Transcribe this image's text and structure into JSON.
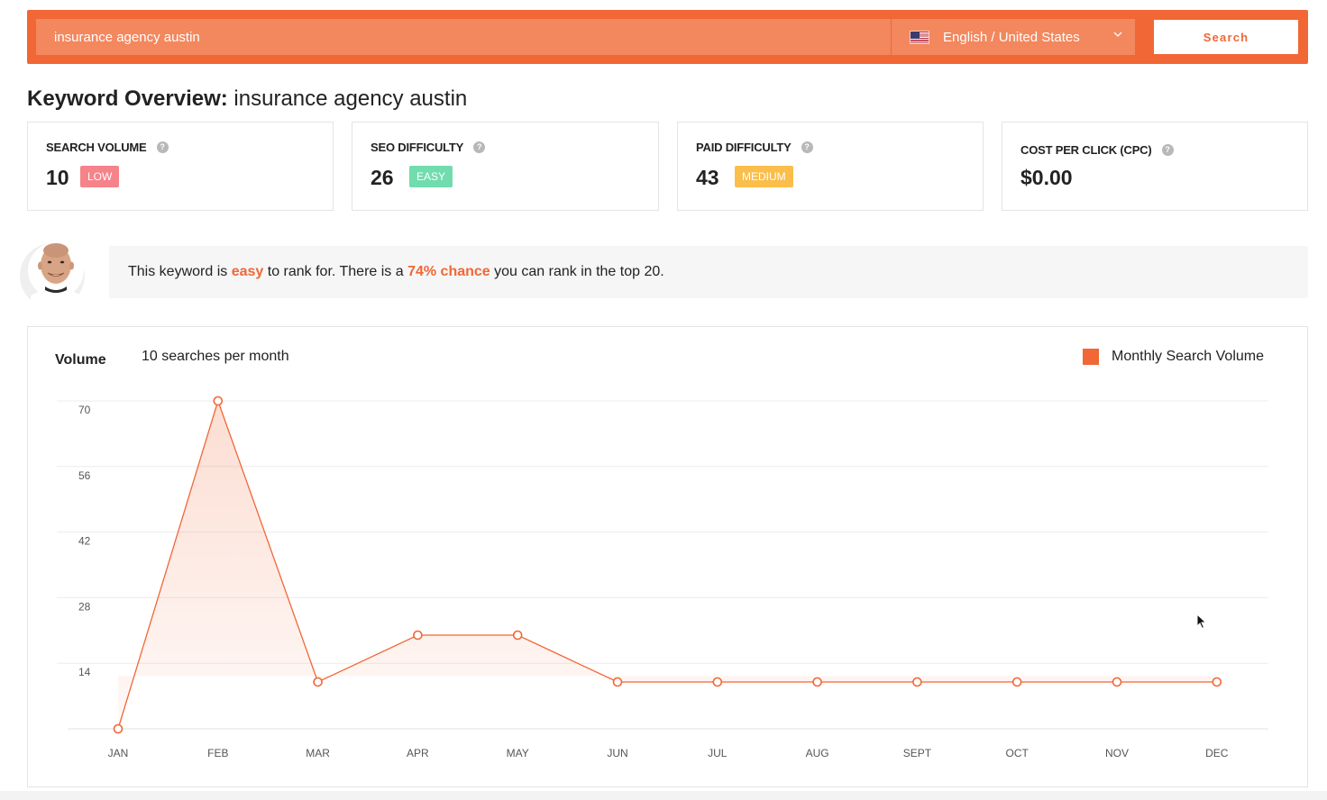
{
  "search": {
    "query": "insurance agency austin",
    "language": "English / United States",
    "button_label": "Search"
  },
  "page": {
    "title_bold": "Keyword Overview:",
    "title_keyword": "insurance agency austin"
  },
  "metrics": [
    {
      "label": "SEARCH VOLUME",
      "value": "10",
      "badge": "LOW",
      "badge_color": "#f6838a"
    },
    {
      "label": "SEO DIFFICULTY",
      "value": "26",
      "badge": "EASY",
      "badge_color": "#71dcae"
    },
    {
      "label": "PAID DIFFICULTY",
      "value": "43",
      "badge": "MEDIUM",
      "badge_color": "#fbbe4b"
    },
    {
      "label": "COST PER CLICK (CPC)",
      "value": "$0.00"
    }
  ],
  "tip": {
    "prefix": "This keyword is ",
    "difficulty": "easy",
    "middle": " to rank for. There is a ",
    "chance": "74% chance",
    "suffix": " you can rank in the top 20."
  },
  "chart_panel": {
    "volume_label": "Volume",
    "volume_summary": "10 searches per month",
    "legend": "Monthly Search Volume"
  },
  "colors": {
    "accent": "#f16736",
    "accent_light": "#f3875d"
  },
  "chart_data": {
    "type": "line",
    "categories": [
      "JAN",
      "FEB",
      "MAR",
      "APR",
      "MAY",
      "JUN",
      "JUL",
      "AUG",
      "SEPT",
      "OCT",
      "NOV",
      "DEC"
    ],
    "series": [
      {
        "name": "Monthly Search Volume",
        "values": [
          0,
          70,
          10,
          20,
          20,
          10,
          10,
          10,
          10,
          10,
          10,
          10
        ]
      }
    ],
    "yticks": [
      14,
      28,
      42,
      56,
      70
    ],
    "ylim": [
      0,
      70
    ],
    "grid": true,
    "legend_position": "top-right"
  }
}
